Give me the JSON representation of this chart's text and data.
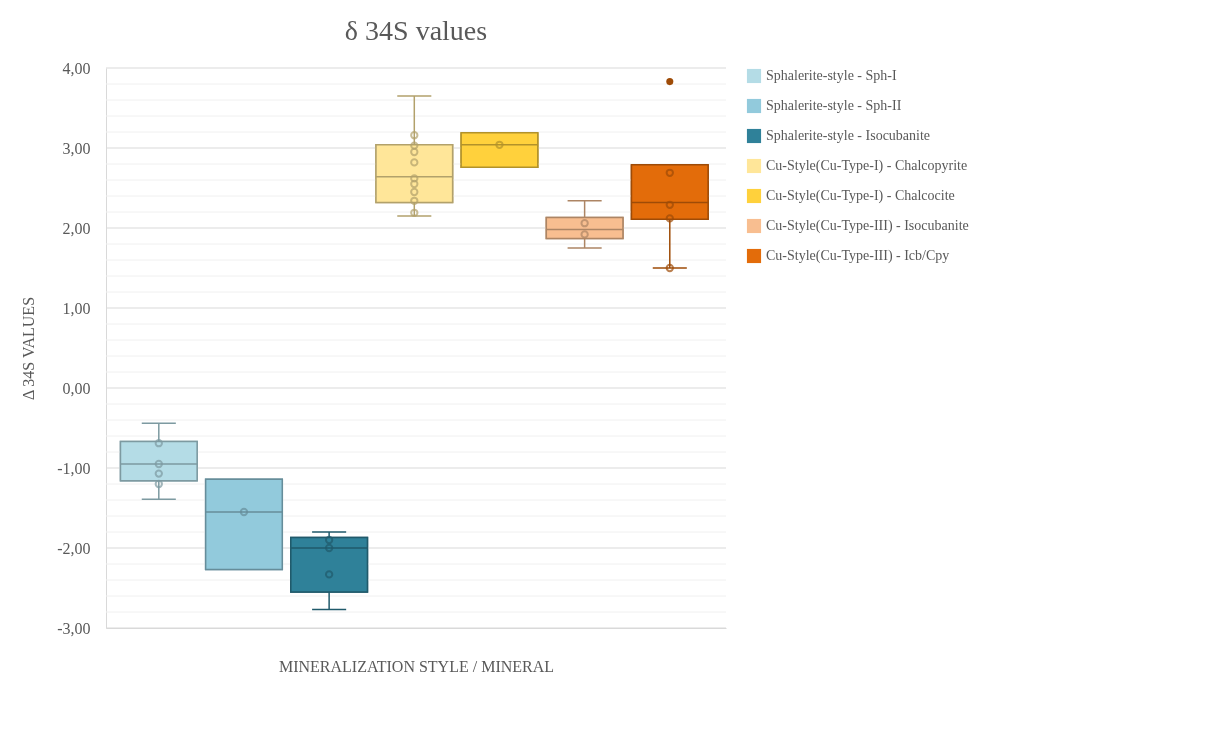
{
  "chart_data": {
    "type": "box",
    "title": "δ 34S values",
    "xlabel": "MINERALIZATION STYLE / MINERAL",
    "ylabel": "Δ 34S VALUES",
    "categories": [
      null
    ],
    "ylim": [
      -3,
      4
    ],
    "yticks": [
      {
        "value": -3,
        "label": "-3,00"
      },
      {
        "value": -2.8,
        "label": null
      },
      {
        "value": -2.6,
        "label": null
      },
      {
        "value": -2.4,
        "label": null
      },
      {
        "value": -2.2,
        "label": null
      },
      {
        "value": -2,
        "label": "-2,00"
      },
      {
        "value": -1.8,
        "label": null
      },
      {
        "value": -1.6,
        "label": null
      },
      {
        "value": -1.4,
        "label": null
      },
      {
        "value": -1.2,
        "label": null
      },
      {
        "value": -1,
        "label": "-1,00"
      },
      {
        "value": -0.8,
        "label": null
      },
      {
        "value": -0.6,
        "label": null
      },
      {
        "value": -0.4,
        "label": null
      },
      {
        "value": -0.2,
        "label": null
      },
      {
        "value": 0,
        "label": "0,00"
      },
      {
        "value": 0.2,
        "label": null
      },
      {
        "value": 0.4,
        "label": null
      },
      {
        "value": 0.6,
        "label": null
      },
      {
        "value": 0.8,
        "label": null
      },
      {
        "value": 1,
        "label": "1,00"
      },
      {
        "value": 1.2,
        "label": null
      },
      {
        "value": 1.4,
        "label": null
      },
      {
        "value": 1.6,
        "label": null
      },
      {
        "value": 1.8,
        "label": null
      },
      {
        "value": 2,
        "label": "2,00"
      },
      {
        "value": 2.2,
        "label": null
      },
      {
        "value": 2.4,
        "label": null
      },
      {
        "value": 2.6,
        "label": null
      },
      {
        "value": 2.8,
        "label": null
      },
      {
        "value": 3,
        "label": "3,00"
      },
      {
        "value": 3.2,
        "label": null
      },
      {
        "value": 3.4,
        "label": null
      },
      {
        "value": 3.6,
        "label": null
      },
      {
        "value": 3.8,
        "label": null
      },
      {
        "value": 4,
        "label": "4,00"
      }
    ],
    "grid": "y",
    "legend": "right",
    "tick_labels": "y",
    "marker": "circle",
    "series": [
      {
        "name": "Sphalerite-style  - Sph-I",
        "type": "box",
        "color": "#b4dce6",
        "boxes": [
          {
            "low": -1.39,
            "q1": -1.16,
            "median": -0.95,
            "q3": -0.67,
            "high": -0.44,
            "outliers": [
              -0.69,
              -0.95,
              -1.07,
              -1.2
            ]
          }
        ]
      },
      {
        "name": "Sphalerite-style  - Sph-II",
        "type": "box",
        "color": "#92cadc",
        "boxes": [
          {
            "low": -2.27,
            "q1": -2.27,
            "median": -1.55,
            "q3": -1.14,
            "high": -1.14,
            "outliers": [
              -1.55
            ]
          }
        ]
      },
      {
        "name": "Sphalerite-style  - Isocubanite",
        "type": "box",
        "color": "#2f8199",
        "boxes": [
          {
            "low": -2.77,
            "q1": -2.55,
            "median": -2.0,
            "q3": -1.87,
            "high": -1.8,
            "outliers": [
              -1.9,
              -2.0,
              -2.33
            ]
          }
        ]
      },
      {
        "name": "Cu-Style(Cu-Type-I) - Chalcopyrite",
        "type": "box",
        "color": "#ffe699",
        "boxes": [
          {
            "low": 2.15,
            "q1": 2.32,
            "median": 2.64,
            "q3": 3.04,
            "high": 3.65,
            "outliers": [
              3.16,
              3.03,
              2.95,
              2.82,
              2.62,
              2.55,
              2.45,
              2.34,
              2.19
            ]
          }
        ]
      },
      {
        "name": "Cu-Style(Cu-Type-I) - Chalcocite",
        "type": "box",
        "color": "#ffd13c",
        "boxes": [
          {
            "low": 2.76,
            "q1": 2.76,
            "median": 3.04,
            "q3": 3.19,
            "high": 3.19,
            "outliers": [
              3.04
            ]
          }
        ]
      },
      {
        "name": "Cu-Style(Cu-Type-III) - Isocubanite",
        "type": "box",
        "color": "#f8be90",
        "boxes": [
          {
            "low": 1.75,
            "q1": 1.87,
            "median": 1.98,
            "q3": 2.13,
            "high": 2.34,
            "outliers": [
              2.06,
              1.92
            ]
          }
        ]
      },
      {
        "name": "Cu-Style(Cu-Type-III) - Icb/Cpy",
        "type": "box",
        "color": "#e36c0a",
        "boxes": [
          {
            "low": 1.5,
            "q1": 2.11,
            "median": 2.32,
            "q3": 2.79,
            "high": 2.79,
            "outliers": [
              3.83,
              2.69,
              2.29,
              2.12,
              1.5
            ]
          }
        ]
      }
    ]
  }
}
